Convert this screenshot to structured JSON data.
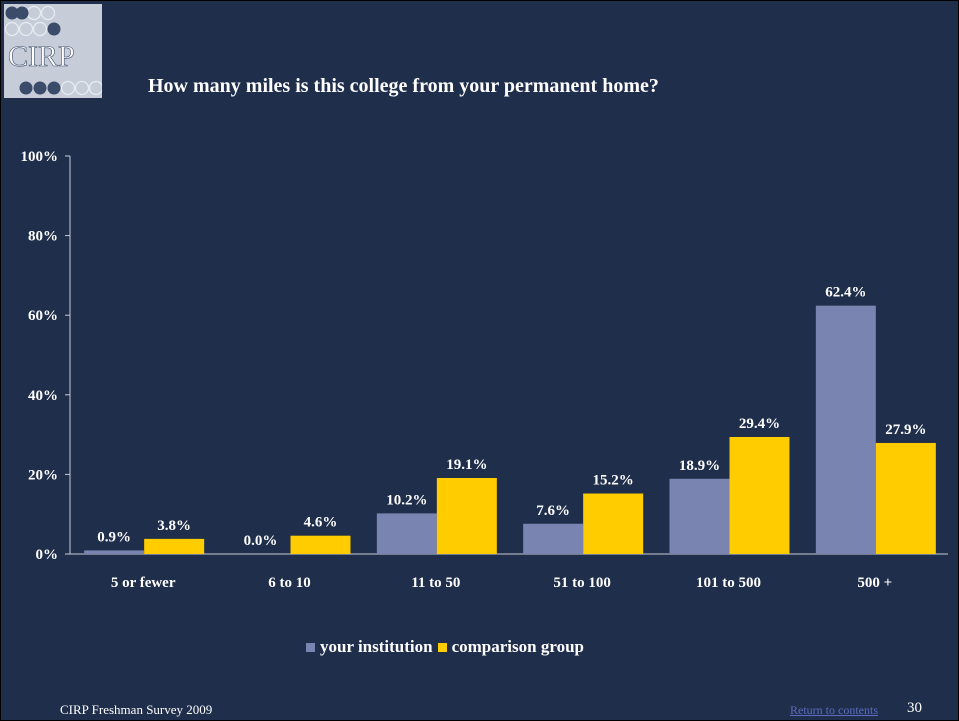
{
  "logo_text": "CIRP",
  "footer": {
    "source": "CIRP Freshman Survey 2009",
    "link_label": "Return to contents",
    "page_number": "30"
  },
  "colors": {
    "background": "#1f2e4a",
    "your_institution": "#7a84b0",
    "comparison_group": "#ffcc00",
    "link": "#5d6cc0"
  },
  "chart_data": {
    "type": "bar",
    "title": "How many miles is this college from your permanent home?",
    "categories": [
      "5 or fewer",
      "6 to 10",
      "11 to 50",
      "51 to 100",
      "101 to 500",
      "500 +"
    ],
    "series": [
      {
        "name": "your institution",
        "values": [
          0.9,
          0.0,
          10.2,
          7.6,
          18.9,
          62.4
        ],
        "labels": [
          "0.9%",
          "0.0%",
          "10.2%",
          "7.6%",
          "18.9%",
          "62.4%"
        ]
      },
      {
        "name": "comparison group",
        "values": [
          3.8,
          4.6,
          19.1,
          15.2,
          29.4,
          27.9
        ],
        "labels": [
          "3.8%",
          "4.6%",
          "19.1%",
          "15.2%",
          "29.4%",
          "27.9%"
        ]
      }
    ],
    "ylim": [
      0,
      100
    ],
    "yticks": [
      "0%",
      "20%",
      "40%",
      "60%",
      "80%",
      "100%"
    ],
    "legend_position": "bottom",
    "grid": false
  }
}
